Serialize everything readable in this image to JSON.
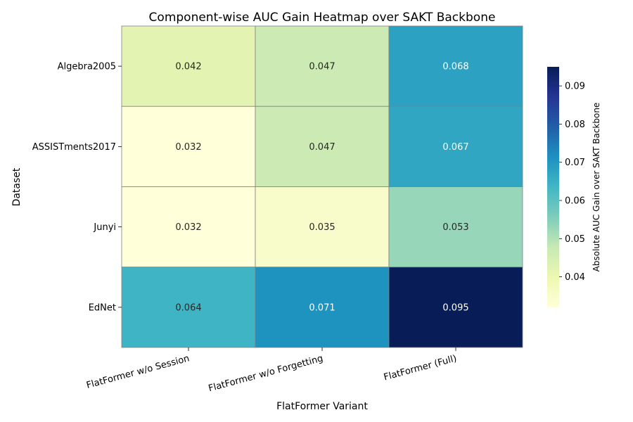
{
  "chart_data": {
    "type": "heatmap",
    "title": "Component-wise AUC Gain Heatmap over SAKT Backbone",
    "xlabel": "FlatFormer Variant",
    "ylabel": "Dataset",
    "x_categories": [
      "FlatFormer w/o Session",
      "FlatFormer w/o Forgetting",
      "FlatFormer (Full)"
    ],
    "y_categories": [
      "Algebra2005",
      "ASSISTments2017",
      "Junyi",
      "EdNet"
    ],
    "values": [
      [
        0.042,
        0.047,
        0.068
      ],
      [
        0.032,
        0.047,
        0.067
      ],
      [
        0.032,
        0.035,
        0.053
      ],
      [
        0.064,
        0.071,
        0.095
      ]
    ],
    "value_labels": [
      [
        "0.042",
        "0.047",
        "0.068"
      ],
      [
        "0.032",
        "0.047",
        "0.067"
      ],
      [
        "0.032",
        "0.035",
        "0.053"
      ],
      [
        "0.064",
        "0.071",
        "0.095"
      ]
    ],
    "colorbar": {
      "label": "Absolute AUC Gain over SAKT Backbone",
      "colormap": "YlGnBu",
      "range": [
        0.032,
        0.095
      ],
      "ticks": [
        0.04,
        0.05,
        0.06,
        0.07,
        0.08,
        0.09
      ],
      "tick_labels": [
        "0.04",
        "0.05",
        "0.06",
        "0.07",
        "0.08",
        "0.09"
      ]
    },
    "grid": false,
    "cell_border_color": "#808080"
  }
}
